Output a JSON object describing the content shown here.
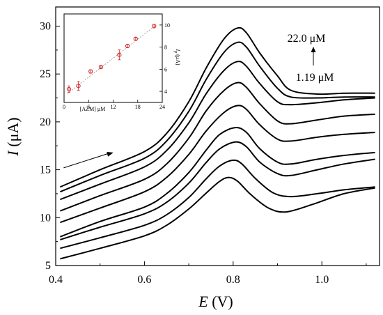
{
  "chart_data": [
    {
      "type": "line",
      "title": "",
      "xlabel_symbol": "E",
      "xlabel_unit": "(V)",
      "ylabel_symbol": "I",
      "ylabel_unit": "(μA)",
      "xlim": [
        0.4,
        1.13
      ],
      "ylim": [
        5,
        32
      ],
      "x_ticks": [
        0.4,
        0.6,
        0.8,
        1.0
      ],
      "y_ticks": [
        5,
        10,
        15,
        20,
        25,
        30
      ],
      "grid": false,
      "annotations": {
        "concentration_high": "22.0 μM",
        "concentration_low": "1.19 μM"
      },
      "series": [
        {
          "peak": 14.2,
          "values": [
            [
              0.41,
              5.7
            ],
            [
              0.5,
              6.8
            ],
            [
              0.6,
              8.1
            ],
            [
              0.65,
              9.2
            ],
            [
              0.7,
              10.9
            ],
            [
              0.74,
              12.6
            ],
            [
              0.77,
              13.8
            ],
            [
              0.79,
              14.2
            ],
            [
              0.81,
              13.8
            ],
            [
              0.84,
              12.4
            ],
            [
              0.88,
              11.0
            ],
            [
              0.92,
              10.6
            ],
            [
              0.98,
              11.4
            ],
            [
              1.05,
              12.5
            ],
            [
              1.12,
              13.1
            ]
          ]
        },
        {
          "peak": 16.0,
          "values": [
            [
              0.41,
              6.8
            ],
            [
              0.5,
              7.9
            ],
            [
              0.6,
              9.2
            ],
            [
              0.65,
              10.3
            ],
            [
              0.7,
              12.1
            ],
            [
              0.74,
              14.1
            ],
            [
              0.77,
              15.4
            ],
            [
              0.8,
              16.0
            ],
            [
              0.82,
              15.6
            ],
            [
              0.85,
              14.1
            ],
            [
              0.89,
              12.6
            ],
            [
              0.93,
              12.2
            ],
            [
              0.99,
              12.5
            ],
            [
              1.05,
              12.9
            ],
            [
              1.12,
              13.2
            ]
          ]
        },
        {
          "peak": 17.9,
          "values": [
            [
              0.41,
              7.7
            ],
            [
              0.5,
              9.0
            ],
            [
              0.6,
              10.4
            ],
            [
              0.65,
              11.6
            ],
            [
              0.7,
              13.6
            ],
            [
              0.74,
              15.8
            ],
            [
              0.77,
              17.2
            ],
            [
              0.805,
              17.9
            ],
            [
              0.83,
              17.4
            ],
            [
              0.86,
              15.8
            ],
            [
              0.9,
              14.6
            ],
            [
              0.93,
              14.4
            ],
            [
              0.99,
              15.0
            ],
            [
              1.05,
              15.6
            ],
            [
              1.12,
              16.1
            ]
          ]
        },
        {
          "peak": 19.4,
          "values": [
            [
              0.41,
              8.0
            ],
            [
              0.5,
              9.6
            ],
            [
              0.6,
              11.1
            ],
            [
              0.65,
              12.5
            ],
            [
              0.7,
              14.7
            ],
            [
              0.74,
              17.1
            ],
            [
              0.77,
              18.7
            ],
            [
              0.805,
              19.4
            ],
            [
              0.83,
              18.9
            ],
            [
              0.86,
              17.2
            ],
            [
              0.9,
              15.8
            ],
            [
              0.93,
              15.6
            ],
            [
              0.99,
              16.1
            ],
            [
              1.05,
              16.5
            ],
            [
              1.12,
              16.8
            ]
          ]
        },
        {
          "peak": 21.7,
          "values": [
            [
              0.41,
              9.5
            ],
            [
              0.5,
              11.0
            ],
            [
              0.6,
              12.7
            ],
            [
              0.65,
              14.2
            ],
            [
              0.7,
              16.6
            ],
            [
              0.74,
              19.1
            ],
            [
              0.78,
              21.0
            ],
            [
              0.81,
              21.7
            ],
            [
              0.83,
              21.3
            ],
            [
              0.86,
              19.7
            ],
            [
              0.9,
              18.2
            ],
            [
              0.93,
              18.0
            ],
            [
              0.99,
              18.4
            ],
            [
              1.05,
              18.7
            ],
            [
              1.12,
              18.9
            ]
          ]
        },
        {
          "peak": 24.1,
          "values": [
            [
              0.41,
              10.7
            ],
            [
              0.5,
              12.3
            ],
            [
              0.6,
              14.0
            ],
            [
              0.65,
              15.6
            ],
            [
              0.7,
              18.3
            ],
            [
              0.74,
              21.2
            ],
            [
              0.78,
              23.3
            ],
            [
              0.81,
              24.1
            ],
            [
              0.83,
              23.6
            ],
            [
              0.86,
              21.9
            ],
            [
              0.9,
              20.1
            ],
            [
              0.93,
              19.8
            ],
            [
              0.99,
              20.2
            ],
            [
              1.05,
              20.6
            ],
            [
              1.12,
              20.8
            ]
          ]
        },
        {
          "peak": 26.3,
          "values": [
            [
              0.41,
              11.9
            ],
            [
              0.5,
              13.5
            ],
            [
              0.6,
              15.3
            ],
            [
              0.65,
              17.0
            ],
            [
              0.7,
              19.9
            ],
            [
              0.74,
              23.0
            ],
            [
              0.78,
              25.4
            ],
            [
              0.81,
              26.3
            ],
            [
              0.83,
              25.8
            ],
            [
              0.86,
              24.0
            ],
            [
              0.9,
              22.1
            ],
            [
              0.93,
              21.8
            ],
            [
              0.99,
              22.0
            ],
            [
              1.05,
              22.3
            ],
            [
              1.12,
              22.5
            ]
          ]
        },
        {
          "peak": 28.3,
          "values": [
            [
              0.41,
              12.7
            ],
            [
              0.5,
              14.4
            ],
            [
              0.6,
              16.2
            ],
            [
              0.65,
              18.0
            ],
            [
              0.7,
              21.1
            ],
            [
              0.74,
              24.5
            ],
            [
              0.78,
              27.3
            ],
            [
              0.81,
              28.3
            ],
            [
              0.83,
              27.8
            ],
            [
              0.86,
              25.8
            ],
            [
              0.9,
              23.5
            ],
            [
              0.93,
              22.6
            ],
            [
              0.99,
              22.5
            ],
            [
              1.05,
              22.6
            ],
            [
              1.12,
              22.6
            ]
          ]
        },
        {
          "peak": 29.8,
          "values": [
            [
              0.41,
              13.2
            ],
            [
              0.5,
              15.0
            ],
            [
              0.6,
              16.9
            ],
            [
              0.65,
              18.8
            ],
            [
              0.7,
              22.1
            ],
            [
              0.74,
              25.7
            ],
            [
              0.78,
              28.7
            ],
            [
              0.81,
              29.8
            ],
            [
              0.83,
              29.3
            ],
            [
              0.86,
              27.2
            ],
            [
              0.9,
              24.8
            ],
            [
              0.93,
              23.3
            ],
            [
              0.99,
              22.9
            ],
            [
              1.05,
              23.0
            ],
            [
              1.12,
              23.0
            ]
          ]
        }
      ],
      "arrow": {
        "from": [
          0.41,
          15.2
        ],
        "to": [
          0.53,
          16.8
        ]
      }
    },
    {
      "type": "scatter",
      "title": "",
      "xlabel": "[AZM] μM",
      "ylabel_symbol": "I",
      "ylabel_sub": "p",
      "ylabel_unit": "(μA)",
      "xlim": [
        0,
        24
      ],
      "ylim": [
        3,
        11
      ],
      "x_ticks": [
        0,
        6,
        12,
        18,
        24
      ],
      "y_ticks": [
        4,
        6,
        8,
        10
      ],
      "points": [
        {
          "x": 1.19,
          "y": 4.2,
          "err": 0.3
        },
        {
          "x": 3.5,
          "y": 4.5,
          "err": 0.4
        },
        {
          "x": 6.5,
          "y": 5.8,
          "err": 0.15
        },
        {
          "x": 9.0,
          "y": 6.2,
          "err": 0.15
        },
        {
          "x": 13.5,
          "y": 7.3,
          "err": 0.45
        },
        {
          "x": 15.5,
          "y": 8.1,
          "err": 0.15
        },
        {
          "x": 17.5,
          "y": 8.75,
          "err": 0.15
        },
        {
          "x": 22.0,
          "y": 9.9,
          "err": 0.15
        }
      ],
      "fit": {
        "x0": 0.8,
        "y0": 3.8,
        "x1": 22.5,
        "y1": 10.0
      },
      "marker_color": "#d62020",
      "fit_color": "#999999"
    }
  ]
}
